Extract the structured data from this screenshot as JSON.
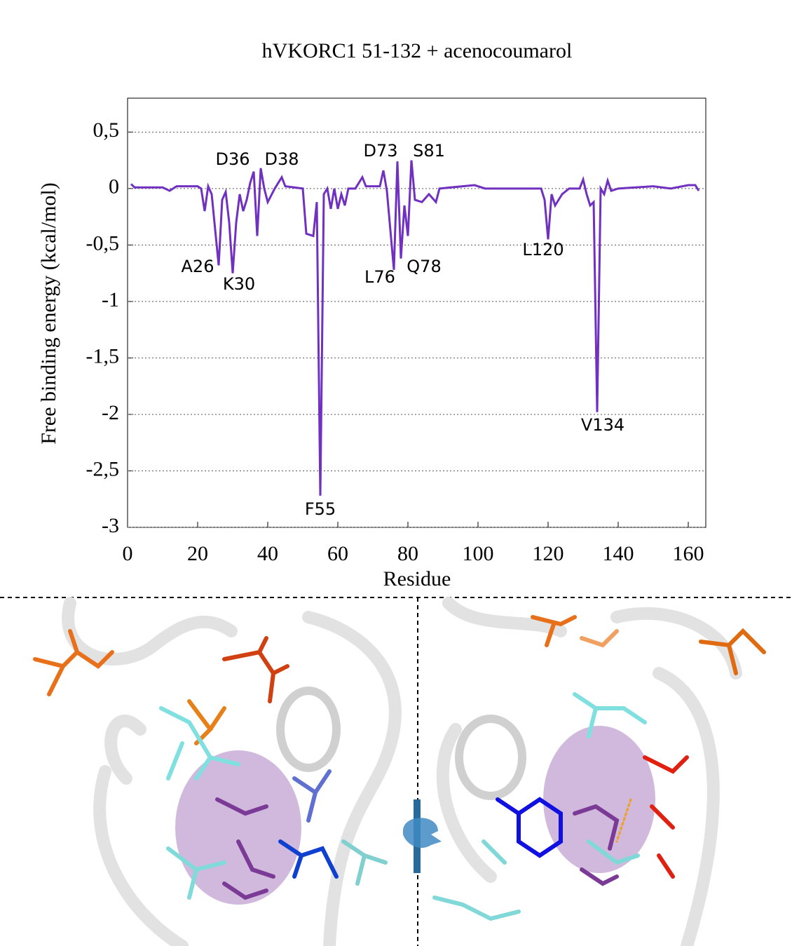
{
  "chart_data": {
    "type": "line",
    "title": "hVKORC1 51-132 + acenocoumarol",
    "x_label": "Residue",
    "y_label": "Free binding energy (kcal/mol)",
    "xlim": [
      0,
      165
    ],
    "ylim": [
      -3,
      0.8
    ],
    "xticks": [
      0,
      20,
      40,
      60,
      80,
      100,
      120,
      140,
      160
    ],
    "yticks": [
      {
        "value": -3,
        "label": "-3"
      },
      {
        "value": -2.5,
        "label": "-2,5"
      },
      {
        "value": -2,
        "label": "-2"
      },
      {
        "value": -1.5,
        "label": "-1,5"
      },
      {
        "value": -1,
        "label": "-1"
      },
      {
        "value": -0.5,
        "label": "-0,5"
      },
      0,
      {
        "value": 0.5,
        "label": "0,5"
      }
    ],
    "grid": true,
    "x": [
      1,
      2,
      10,
      12,
      14,
      20,
      21,
      22,
      23,
      24,
      26,
      27,
      28,
      29,
      30,
      31,
      32,
      33,
      34,
      35,
      36,
      37,
      38,
      39,
      40,
      42,
      44,
      45,
      50,
      51,
      53,
      54,
      55,
      56,
      57,
      58,
      59,
      60,
      61,
      62,
      63,
      65,
      67,
      68,
      72,
      73,
      74,
      76,
      77,
      78,
      79,
      80,
      81,
      82,
      84,
      86,
      88,
      89,
      99,
      102,
      110,
      118,
      119,
      120,
      121,
      122,
      124,
      126,
      129,
      130,
      131,
      132,
      133,
      134,
      135,
      136,
      137,
      138,
      140,
      150,
      155,
      160,
      162,
      163
    ],
    "series": [
      {
        "name": "acenocoumarol",
        "color": "#7030c0",
        "values": [
          0.04,
          0.01,
          0.01,
          -0.02,
          0.02,
          0.02,
          0.0,
          -0.2,
          0.02,
          -0.05,
          -0.68,
          -0.1,
          -0.03,
          -0.3,
          -0.75,
          -0.3,
          -0.05,
          -0.2,
          -0.1,
          0.05,
          0.15,
          -0.42,
          0.18,
          0.0,
          -0.12,
          0.0,
          0.1,
          0.02,
          0.0,
          -0.4,
          -0.42,
          -0.12,
          -2.72,
          -0.05,
          0.0,
          -0.18,
          0.0,
          -0.18,
          -0.05,
          -0.15,
          0.0,
          0.0,
          0.1,
          0.02,
          0.02,
          0.16,
          -0.02,
          -0.72,
          0.24,
          -0.62,
          -0.15,
          -0.42,
          0.25,
          -0.1,
          -0.12,
          -0.05,
          -0.12,
          0.0,
          0.03,
          0.0,
          0.0,
          0.0,
          -0.1,
          -0.45,
          -0.05,
          -0.15,
          -0.05,
          0.0,
          0.0,
          0.08,
          -0.05,
          -0.15,
          -0.12,
          -1.98,
          0.0,
          -0.05,
          0.07,
          -0.02,
          0.0,
          0.02,
          0.0,
          0.03,
          0.03,
          -0.02
        ]
      }
    ],
    "annotations": [
      "D36",
      "D38",
      "D73",
      "S81",
      "A26",
      "K30",
      "L76",
      "Q78",
      "L120",
      "F55",
      "V134"
    ]
  }
}
